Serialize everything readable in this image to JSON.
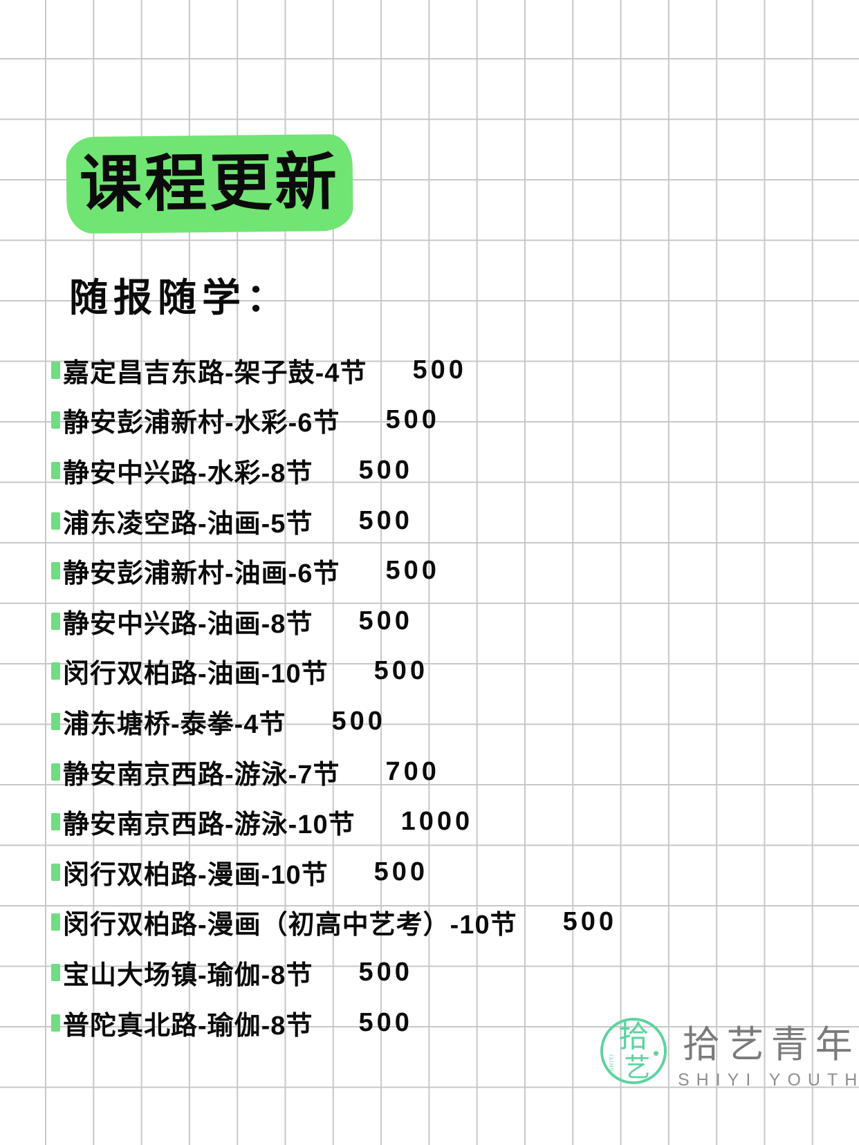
{
  "header": {
    "title": "课程更新",
    "subtitle": "随报随学："
  },
  "course_list": {
    "items": [
      {
        "name": "嘉定昌吉东路-架子鼓-4节",
        "price": "500"
      },
      {
        "name": "静安彭浦新村-水彩-6节",
        "price": "500"
      },
      {
        "name": "静安中兴路-水彩-8节",
        "price": "500"
      },
      {
        "name": "浦东凌空路-油画-5节",
        "price": "500"
      },
      {
        "name": "静安彭浦新村-油画-6节",
        "price": "500"
      },
      {
        "name": "静安中兴路-油画-8节",
        "price": "500"
      },
      {
        "name": "闵行双柏路-油画-10节",
        "price": "500"
      },
      {
        "name": "浦东塘桥-泰拳-4节",
        "price": "500"
      },
      {
        "name": "静安南京西路-游泳-7节",
        "price": "700"
      },
      {
        "name": "静安南京西路-游泳-10节",
        "price": "1000"
      },
      {
        "name": "闵行双柏路-漫画-10节",
        "price": "500"
      },
      {
        "name": "闵行双柏路-漫画（初高中艺考）-10节",
        "price": "500"
      },
      {
        "name": "宝山大场镇-瑜伽-8节",
        "price": "500"
      },
      {
        "name": "普陀真北路-瑜伽-8节",
        "price": "500"
      }
    ]
  },
  "brand": {
    "logo_char_top": "拾",
    "logo_char_bottom": "艺",
    "logo_vertical_text": "SHIYI",
    "name_cn": "拾艺青年",
    "name_en": "SHIYI YOUTH"
  },
  "colors": {
    "highlight_green": "#70e573",
    "bullet_green": "#71dc83",
    "ink": "#0b0b0b",
    "grid_line": "#c7c7c7",
    "logo_green": "#5fd3a0",
    "brand_gray": "#7b7b7b"
  }
}
